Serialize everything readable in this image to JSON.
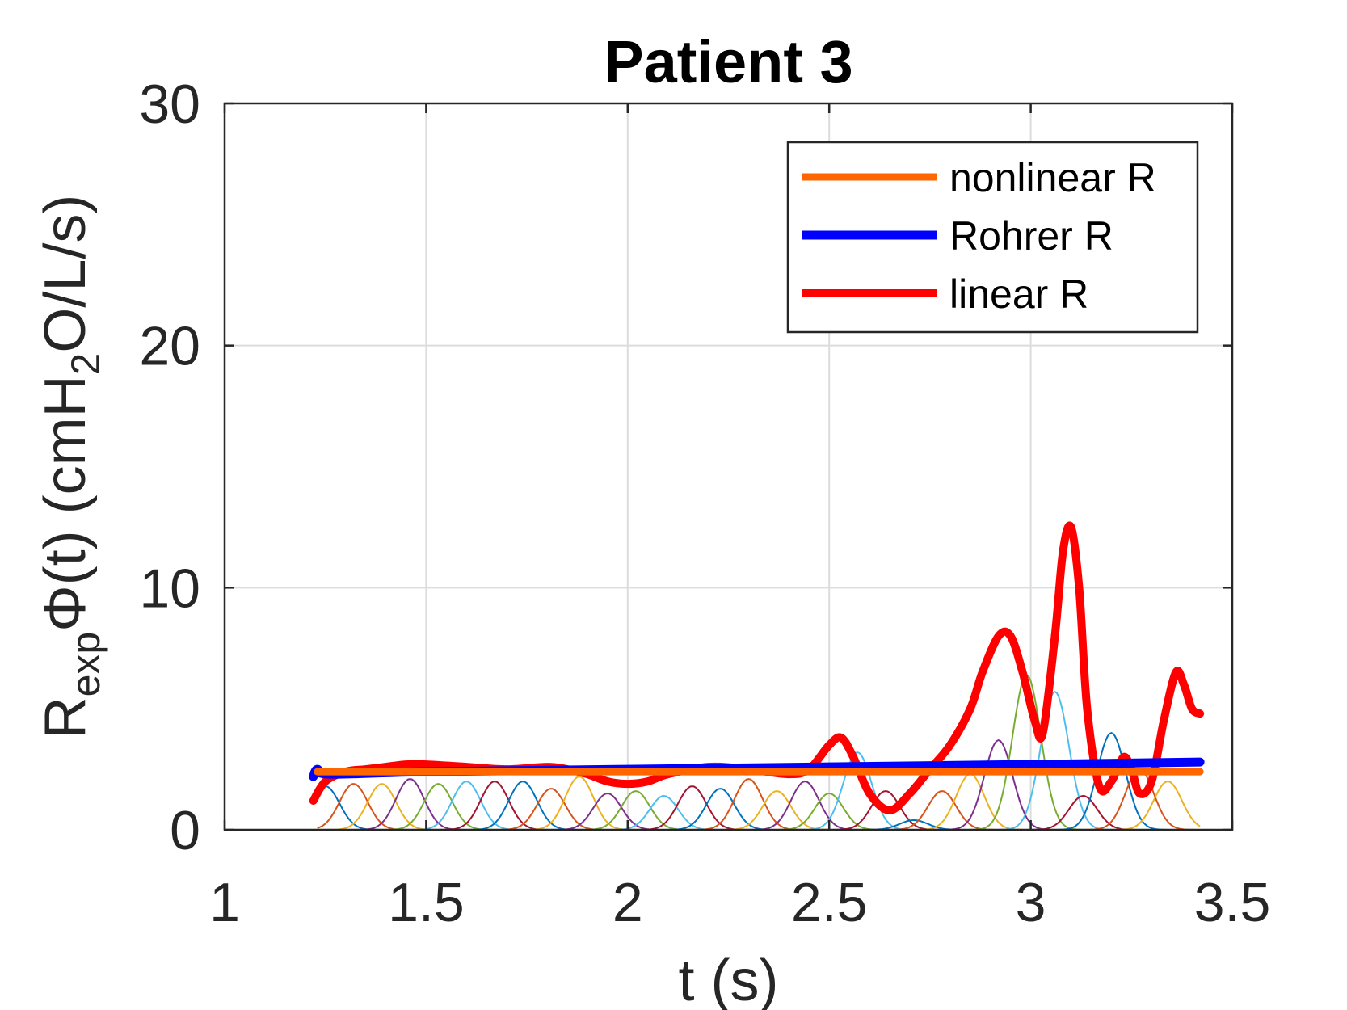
{
  "chart_data": {
    "type": "line",
    "title": "Patient 3",
    "xlabel": "t (s)",
    "ylabel": {
      "base": "R",
      "base_sub": "exp",
      "mid": "Φ(t) (cmH",
      "mid_sub": "2",
      "end": "O/L/s)"
    },
    "xlim": [
      1,
      3.5
    ],
    "ylim": [
      0,
      30
    ],
    "xticks": [
      1,
      1.5,
      2,
      2.5,
      3,
      3.5
    ],
    "xtick_labels": [
      "1",
      "1.5",
      "2",
      "2.5",
      "3",
      "3.5"
    ],
    "yticks": [
      0,
      10,
      20,
      30
    ],
    "ytick_labels": [
      "0",
      "10",
      "20",
      "30"
    ],
    "grid": true,
    "legend_position": "top-right",
    "series": [
      {
        "name": "nonlinear R",
        "color": "#ff6600",
        "x": [
          1.23,
          3.42
        ],
        "y": [
          2.4,
          2.4
        ]
      },
      {
        "name": "Rohrer R",
        "color": "#0000ff",
        "x": [
          1.22,
          1.23,
          1.26,
          1.5,
          2.0,
          2.5,
          3.0,
          3.42
        ],
        "y": [
          2.2,
          2.5,
          2.3,
          2.4,
          2.5,
          2.6,
          2.7,
          2.8
        ]
      },
      {
        "name": "linear R",
        "color": "#ff0000",
        "x": [
          1.22,
          1.25,
          1.3,
          1.35,
          1.4,
          1.45,
          1.5,
          1.6,
          1.7,
          1.8,
          1.85,
          1.9,
          1.95,
          2.0,
          2.05,
          2.1,
          2.2,
          2.3,
          2.4,
          2.45,
          2.5,
          2.53,
          2.56,
          2.6,
          2.65,
          2.7,
          2.75,
          2.8,
          2.85,
          2.88,
          2.92,
          2.95,
          2.98,
          3.01,
          3.03,
          3.06,
          3.08,
          3.1,
          3.12,
          3.14,
          3.17,
          3.2,
          3.23,
          3.25,
          3.27,
          3.3,
          3.33,
          3.36,
          3.38,
          3.4,
          3.42
        ],
        "y": [
          1.2,
          2.0,
          2.4,
          2.5,
          2.6,
          2.7,
          2.7,
          2.6,
          2.5,
          2.6,
          2.5,
          2.3,
          2.0,
          1.9,
          2.0,
          2.3,
          2.6,
          2.5,
          2.3,
          2.5,
          3.5,
          3.8,
          3.0,
          1.5,
          0.8,
          1.5,
          2.5,
          3.5,
          5.0,
          6.5,
          8.0,
          8.0,
          6.5,
          4.5,
          4.0,
          8.0,
          11.5,
          12.5,
          10.0,
          5.0,
          1.8,
          2.0,
          3.0,
          2.5,
          1.5,
          2.0,
          4.5,
          6.5,
          6.0,
          5.0,
          4.8
        ]
      }
    ],
    "basis": {
      "colors": [
        "#0072bd",
        "#d95319",
        "#edb120",
        "#7e2f8e",
        "#77ac30",
        "#4dbeee",
        "#a2142f"
      ],
      "items": [
        {
          "c": 1.25,
          "a": 1.8,
          "w": 0.035
        },
        {
          "c": 1.32,
          "a": 1.9,
          "w": 0.035
        },
        {
          "c": 1.39,
          "a": 1.9,
          "w": 0.035
        },
        {
          "c": 1.46,
          "a": 2.1,
          "w": 0.035
        },
        {
          "c": 1.53,
          "a": 1.9,
          "w": 0.035
        },
        {
          "c": 1.6,
          "a": 2.0,
          "w": 0.035
        },
        {
          "c": 1.67,
          "a": 2.0,
          "w": 0.035
        },
        {
          "c": 1.74,
          "a": 2.0,
          "w": 0.035
        },
        {
          "c": 1.81,
          "a": 1.7,
          "w": 0.035
        },
        {
          "c": 1.88,
          "a": 2.2,
          "w": 0.035
        },
        {
          "c": 1.95,
          "a": 1.5,
          "w": 0.035
        },
        {
          "c": 2.02,
          "a": 1.6,
          "w": 0.035
        },
        {
          "c": 2.09,
          "a": 1.4,
          "w": 0.035
        },
        {
          "c": 2.16,
          "a": 1.8,
          "w": 0.035
        },
        {
          "c": 2.23,
          "a": 1.7,
          "w": 0.035
        },
        {
          "c": 2.3,
          "a": 2.1,
          "w": 0.035
        },
        {
          "c": 2.37,
          "a": 1.6,
          "w": 0.035
        },
        {
          "c": 2.44,
          "a": 2.0,
          "w": 0.035
        },
        {
          "c": 2.5,
          "a": 1.5,
          "w": 0.035
        },
        {
          "c": 2.57,
          "a": 3.2,
          "w": 0.035
        },
        {
          "c": 2.64,
          "a": 1.6,
          "w": 0.035
        },
        {
          "c": 2.71,
          "a": 0.4,
          "w": 0.035
        },
        {
          "c": 2.78,
          "a": 1.6,
          "w": 0.035
        },
        {
          "c": 2.85,
          "a": 2.3,
          "w": 0.035
        },
        {
          "c": 2.92,
          "a": 3.7,
          "w": 0.035
        },
        {
          "c": 2.99,
          "a": 6.4,
          "w": 0.035
        },
        {
          "c": 3.06,
          "a": 5.7,
          "w": 0.035
        },
        {
          "c": 3.13,
          "a": 1.4,
          "w": 0.035
        },
        {
          "c": 3.2,
          "a": 4.0,
          "w": 0.035
        },
        {
          "c": 3.27,
          "a": 2.5,
          "w": 0.035
        },
        {
          "c": 3.34,
          "a": 2.0,
          "w": 0.035
        }
      ]
    }
  }
}
